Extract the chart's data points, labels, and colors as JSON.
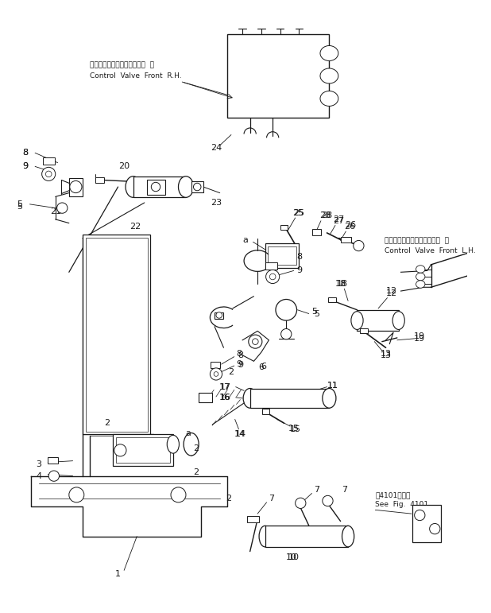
{
  "bg": "#ffffff",
  "lc": "#1a1a1a",
  "lw": 0.7,
  "figsize": [
    6.18,
    7.71
  ],
  "dpi": 100,
  "labels_rh": [
    "コントロールバルブフロント  右",
    "Control  Valve  Front  R.H."
  ],
  "labels_lh": [
    "コントロールバルブフロント  左",
    "Control  Valve  Front  L.H."
  ],
  "labels_fig": [
    "第4101図参照",
    "See  Fig.  4101"
  ]
}
